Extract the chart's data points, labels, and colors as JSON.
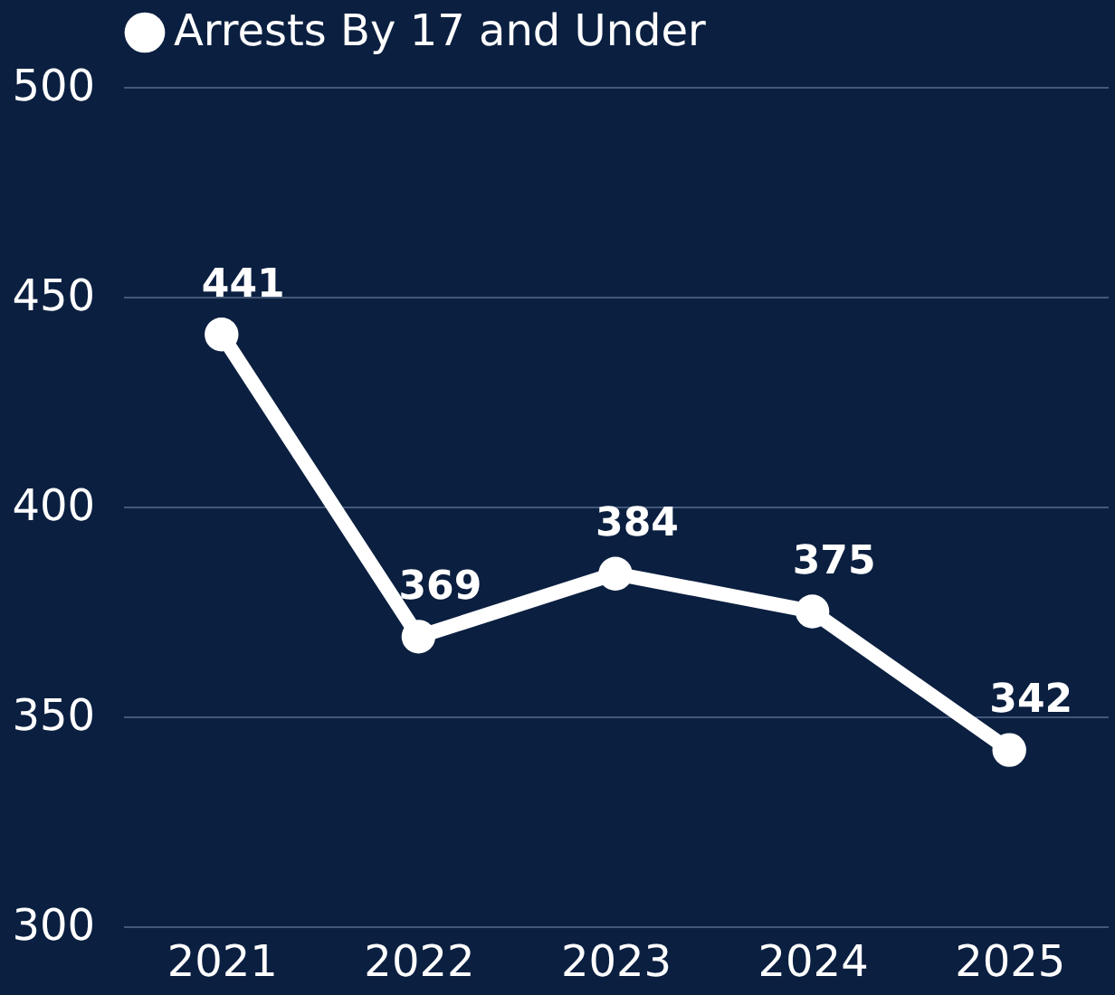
{
  "chart_data": {
    "type": "line",
    "categories": [
      "2021",
      "2022",
      "2023",
      "2024",
      "2025"
    ],
    "series": [
      {
        "name": "Arrests By 17 and Under",
        "color": "#ffffff",
        "values": [
          441,
          369,
          384,
          375,
          342
        ]
      }
    ],
    "ylim": [
      300,
      500
    ],
    "yticks": [
      300,
      350,
      400,
      450,
      500
    ],
    "grid": "y",
    "legend": "top",
    "marker": "circle",
    "line_style": "solid",
    "data_labels": true
  }
}
